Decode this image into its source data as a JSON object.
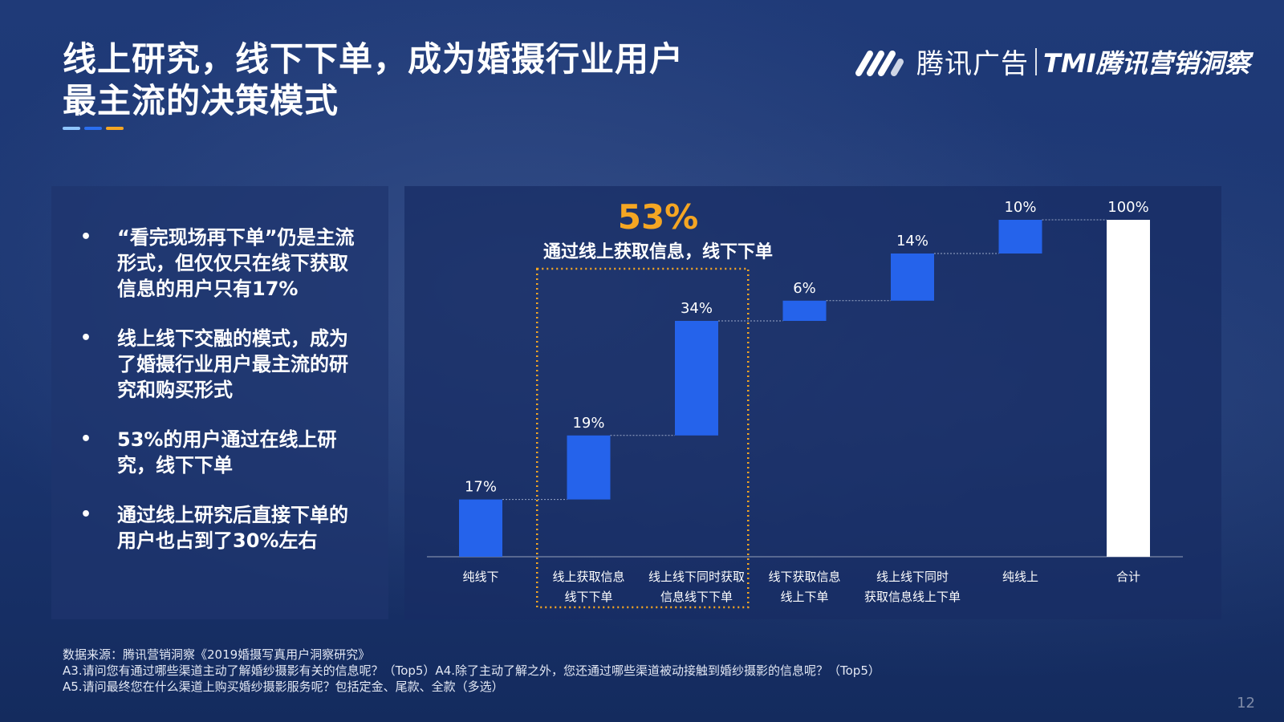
{
  "title": {
    "line1": "线上研究，线下下单，成为婚摄行业用户",
    "line2": "最主流的决策模式"
  },
  "colors": {
    "accent_bar": "#2563eb",
    "total_bar": "#ffffff",
    "highlight": "#f5a623",
    "title_bar_1": "#8ec5ff",
    "title_bar_2": "#2b6ff0",
    "title_bar_3": "#f5a623"
  },
  "logo": {
    "brand": "腾讯广告",
    "product": "TMI腾讯营销洞察"
  },
  "bullets": [
    "“看完现场再下单”仍是主流形式，但仅仅只在线下获取信息的用户只有17%",
    "线上线下交融的模式，成为了婚摄行业用户最主流的研究和购买形式",
    "53%的用户通过在线上研究，线下下单",
    "通过线上研究后直接下单的用户也占到了30%左右"
  ],
  "highlight": {
    "percent": "53%",
    "text": "通过线上获取信息，线下下单"
  },
  "chart_data": {
    "type": "bar",
    "subtype": "waterfall",
    "categories": [
      [
        "纯线下"
      ],
      [
        "线上获取信息",
        "线下下单"
      ],
      [
        "线上线下同时获取",
        "信息线下下单"
      ],
      [
        "线下获取信息",
        "线上下单"
      ],
      [
        "线上线下同时",
        "获取信息线上下单"
      ],
      [
        "纯线上"
      ],
      [
        "合计"
      ]
    ],
    "values": [
      17,
      19,
      34,
      6,
      14,
      10,
      100
    ],
    "labels": [
      "17%",
      "19%",
      "34%",
      "6%",
      "14%",
      "10%",
      "100%"
    ],
    "total_index": 6,
    "ylim": [
      0,
      100
    ],
    "highlight_range": [
      1,
      2
    ],
    "grid": false
  },
  "source": {
    "line1": "数据来源：腾讯营销洞察《2019婚摄写真用户洞察研究》",
    "line2": "A3.请问您有通过哪些渠道主动了解婚纱摄影有关的信息呢？（Top5）A4.除了主动了解之外，您还通过哪些渠道被动接触到婚纱摄影的信息呢？（Top5）",
    "line3": "A5.请问最终您在什么渠道上购买婚纱摄影服务呢？包括定金、尾款、全款（多选）"
  },
  "page_number": "12"
}
